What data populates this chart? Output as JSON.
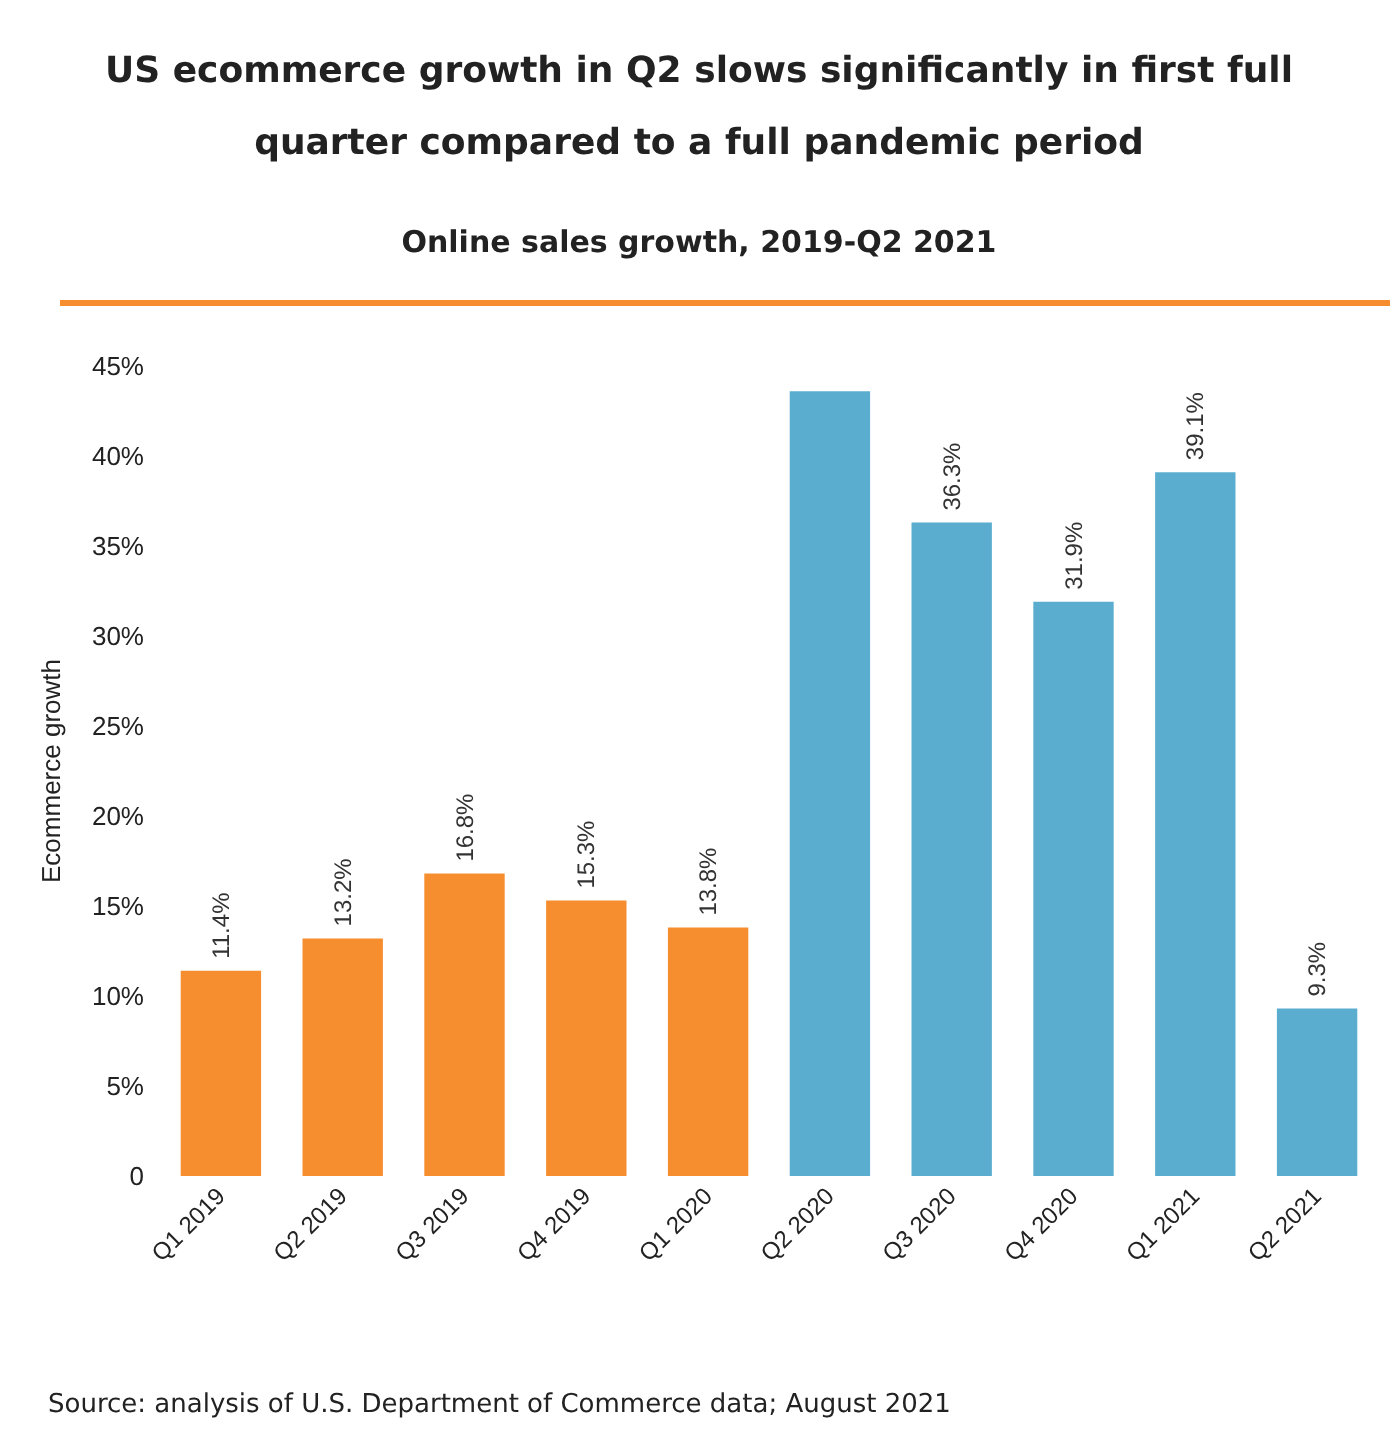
{
  "chart_data": {
    "type": "bar",
    "title": "US ecommerce growth in Q2 slows significantly in first full quarter compared to a full pandemic period",
    "subtitle": "Online sales growth, 2019-Q2 2021",
    "ylabel": "Ecommerce growth",
    "categories": [
      "Q1 2019",
      "Q2 2019",
      "Q3 2019",
      "Q4 2019",
      "Q1 2020",
      "Q2 2020",
      "Q3 2020",
      "Q4 2020",
      "Q1 2021",
      "Q2 2021"
    ],
    "values": [
      11.4,
      13.2,
      16.8,
      15.3,
      13.8,
      43.6,
      36.3,
      31.9,
      39.1,
      9.3
    ],
    "value_labels": [
      "11.4%",
      "13.2%",
      "16.8%",
      "15.3%",
      "13.8%",
      null,
      "36.3%",
      "31.9%",
      "39.1%",
      "9.3%"
    ],
    "colors": [
      "#f68d2e",
      "#f68d2e",
      "#f68d2e",
      "#f68d2e",
      "#f68d2e",
      "#5badcf",
      "#5badcf",
      "#5badcf",
      "#5badcf",
      "#5badcf"
    ],
    "ylim": [
      0,
      45
    ],
    "yticks": [
      {
        "value": 0,
        "label": "0"
      },
      {
        "value": 5,
        "label": "5%"
      },
      {
        "value": 10,
        "label": "10%"
      },
      {
        "value": 15,
        "label": "15%"
      },
      {
        "value": 20,
        "label": "20%"
      },
      {
        "value": 25,
        "label": "25%"
      },
      {
        "value": 30,
        "label": "30%"
      },
      {
        "value": 35,
        "label": "35%"
      },
      {
        "value": 40,
        "label": "40%"
      },
      {
        "value": 45,
        "label": "45%"
      }
    ],
    "grid": false,
    "annotations": [
      "Source: analysis of U.S. Department of Commerce data; August 2021"
    ]
  }
}
